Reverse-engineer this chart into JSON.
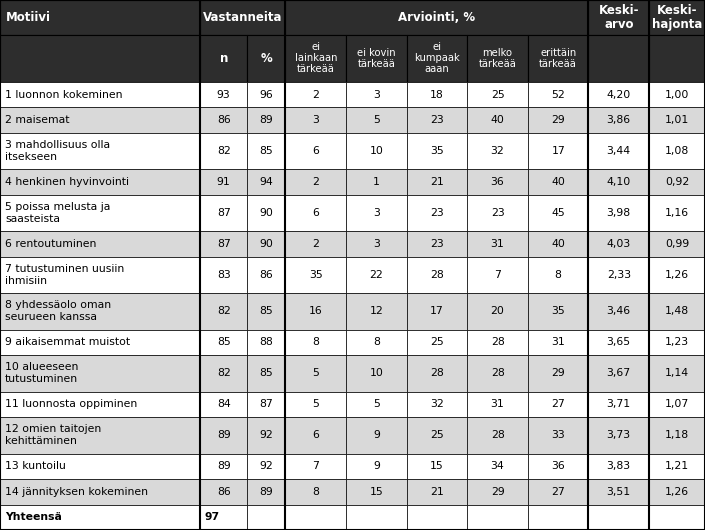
{
  "headers_arviointi": [
    "ei\nlainkaan\ntärkeää",
    "ei kovin\ntärkeää",
    "ei\nkumpaak\naaan",
    "melko\ntärkeää",
    "erittäin\ntärkeää"
  ],
  "rows": [
    {
      "motiivi": "1 luonnon kokeminen",
      "n": 93,
      "pct": 96,
      "arv": [
        2,
        3,
        18,
        25,
        52
      ],
      "ka": "4,20",
      "kh": "1,00"
    },
    {
      "motiivi": "2 maisemat",
      "n": 86,
      "pct": 89,
      "arv": [
        3,
        5,
        23,
        40,
        29
      ],
      "ka": "3,86",
      "kh": "1,01"
    },
    {
      "motiivi": "3 mahdollisuus olla\nitsekseen",
      "n": 82,
      "pct": 85,
      "arv": [
        6,
        10,
        35,
        32,
        17
      ],
      "ka": "3,44",
      "kh": "1,08"
    },
    {
      "motiivi": "4 henkinen hyvinvointi",
      "n": 91,
      "pct": 94,
      "arv": [
        2,
        1,
        21,
        36,
        40
      ],
      "ka": "4,10",
      "kh": "0,92"
    },
    {
      "motiivi": "5 poissa melusta ja\nsaasteista",
      "n": 87,
      "pct": 90,
      "arv": [
        6,
        3,
        23,
        23,
        45
      ],
      "ka": "3,98",
      "kh": "1,16"
    },
    {
      "motiivi": "6 rentoutuminen",
      "n": 87,
      "pct": 90,
      "arv": [
        2,
        3,
        23,
        31,
        40
      ],
      "ka": "4,03",
      "kh": "0,99"
    },
    {
      "motiivi": "7 tutustuminen uusiin\nihmisiin",
      "n": 83,
      "pct": 86,
      "arv": [
        35,
        22,
        28,
        7,
        8
      ],
      "ka": "2,33",
      "kh": "1,26"
    },
    {
      "motiivi": "8 yhdessäolo oman\nseurueen kanssa",
      "n": 82,
      "pct": 85,
      "arv": [
        16,
        12,
        17,
        20,
        35
      ],
      "ka": "3,46",
      "kh": "1,48"
    },
    {
      "motiivi": "9 aikaisemmat muistot",
      "n": 85,
      "pct": 88,
      "arv": [
        8,
        8,
        25,
        28,
        31
      ],
      "ka": "3,65",
      "kh": "1,23"
    },
    {
      "motiivi": "10 alueeseen\ntutustuminen",
      "n": 82,
      "pct": 85,
      "arv": [
        5,
        10,
        28,
        28,
        29
      ],
      "ka": "3,67",
      "kh": "1,14"
    },
    {
      "motiivi": "11 luonnosta oppiminen",
      "n": 84,
      "pct": 87,
      "arv": [
        5,
        5,
        32,
        31,
        27
      ],
      "ka": "3,71",
      "kh": "1,07"
    },
    {
      "motiivi": "12 omien taitojen\nkehittäminen",
      "n": 89,
      "pct": 92,
      "arv": [
        6,
        9,
        25,
        28,
        33
      ],
      "ka": "3,73",
      "kh": "1,18"
    },
    {
      "motiivi": "13 kuntoilu",
      "n": 89,
      "pct": 92,
      "arv": [
        7,
        9,
        15,
        34,
        36
      ],
      "ka": "3,83",
      "kh": "1,21"
    },
    {
      "motiivi": "14 jännityksen kokeminen",
      "n": 86,
      "pct": 89,
      "arv": [
        8,
        15,
        21,
        29,
        27
      ],
      "ka": "3,51",
      "kh": "1,26"
    }
  ],
  "footer_motiivi": "Yhteensä",
  "footer_n": "97",
  "header_bg": "#2d2d2d",
  "header_fg": "#ffffff",
  "row_bg_even": "#ffffff",
  "row_bg_odd": "#d9d9d9",
  "footer_bg": "#ffffff",
  "text_color": "#000000",
  "border_color": "#000000",
  "font_size": 7.8,
  "header_font_size": 8.5,
  "subheader_font_size": 7.2
}
